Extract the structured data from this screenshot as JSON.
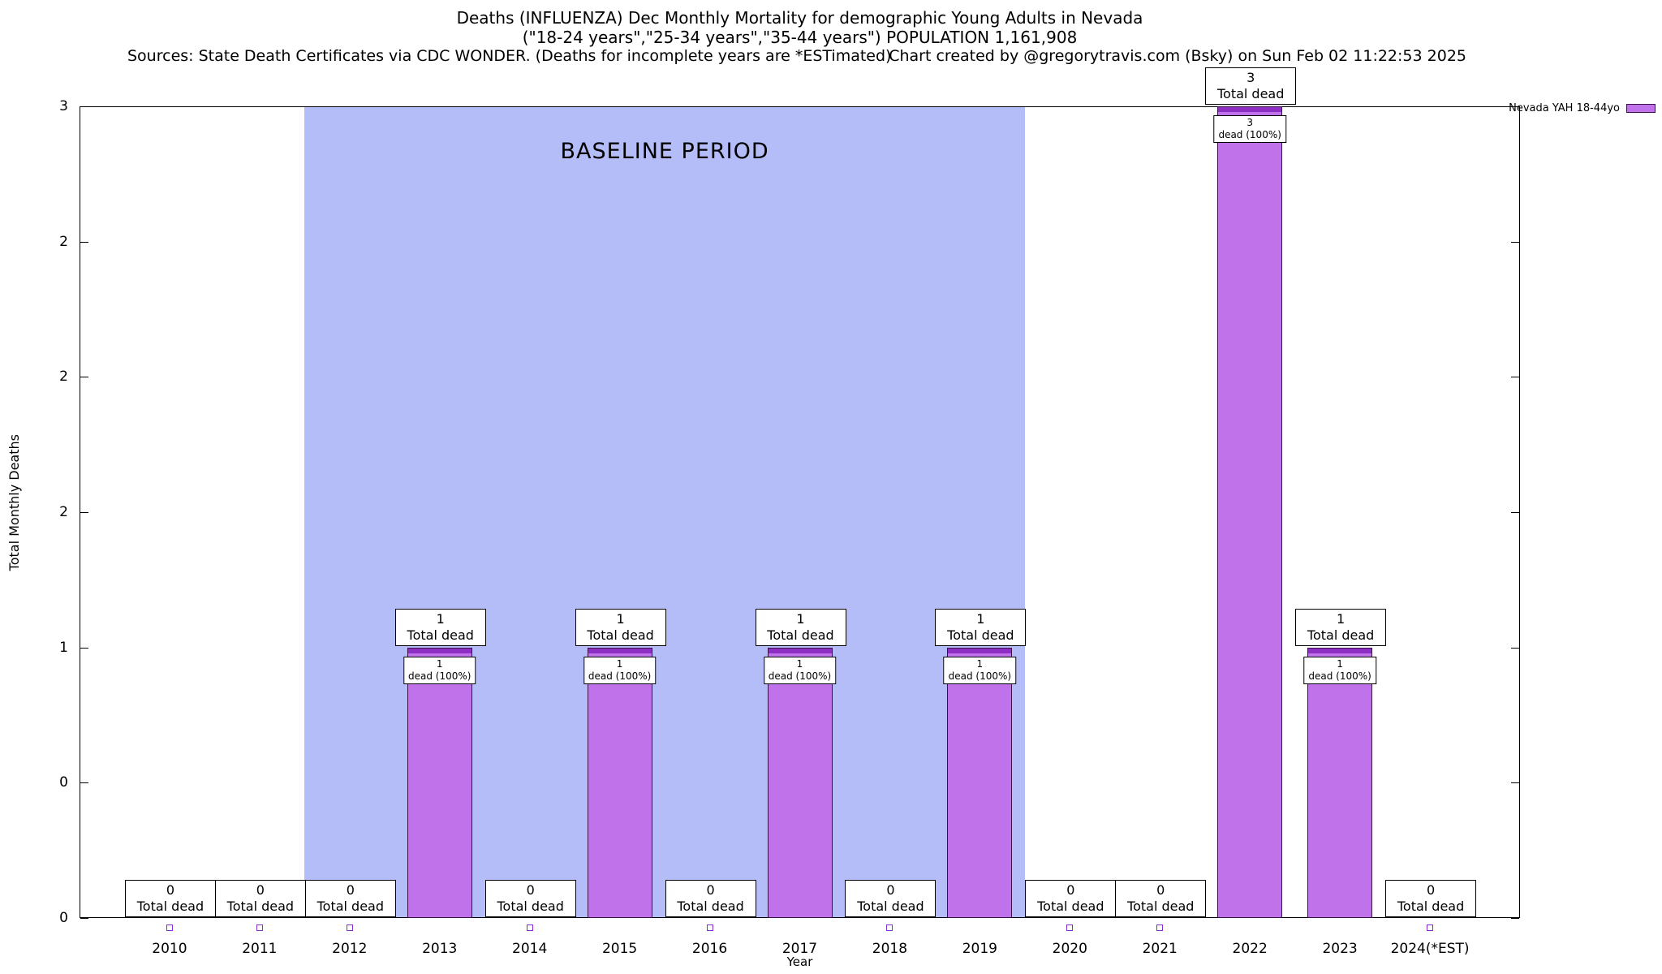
{
  "header": {
    "line1": "Deaths (INFLUENZA) Dec Monthly Mortality for demographic Young Adults in Nevada",
    "line2": "(\"18-24 years\",\"25-34 years\",\"35-44 years\") POPULATION 1,161,908",
    "sources": "Sources: State Death Certificates via CDC WONDER. (Deaths for incomplete years are *ESTimated)",
    "credit": "Chart created by @gregorytravis.com (Bsky) on Sun Feb 02 11:22:53 2025"
  },
  "legend": {
    "label": "Nevada YAH 18-44yo"
  },
  "colors": {
    "bar_fill": "#c072ea",
    "bar_cap": "#8e2fc4",
    "bar_border": "#3a1048",
    "baseline_fill": "#b5bdf9",
    "box_border": "#000000",
    "marker_border": "#8a2bd0",
    "axis": "#000000"
  },
  "chart_data": {
    "type": "bar",
    "title": "Deaths (INFLUENZA) Dec Monthly Mortality for demographic Young Adults in Nevada",
    "subtitle": "(\"18-24 years\",\"25-34 years\",\"35-44 years\") POPULATION 1,161,908",
    "xlabel": "Year",
    "ylabel": "Total Monthly Deaths",
    "ylim": [
      0,
      3
    ],
    "yticks": [
      0,
      0.5,
      1,
      1.5,
      2,
      2.5,
      3
    ],
    "ytick_labels": [
      "0",
      "0",
      "1",
      "2",
      "2",
      "2",
      "3"
    ],
    "categories": [
      "2010",
      "2011",
      "2012",
      "2013",
      "2014",
      "2015",
      "2016",
      "2017",
      "2018",
      "2019",
      "2020",
      "2021",
      "2022",
      "2023",
      "2024(*EST)"
    ],
    "values": [
      0,
      0,
      0,
      1,
      0,
      1,
      0,
      1,
      0,
      1,
      0,
      0,
      3,
      1,
      0
    ],
    "series": [
      {
        "name": "Nevada YAH 18-44yo",
        "values": [
          0,
          0,
          0,
          1,
          0,
          1,
          0,
          1,
          0,
          1,
          0,
          0,
          3,
          1,
          0
        ]
      }
    ],
    "labels": {
      "total": "Total dead",
      "dead_pct": "dead (100%)"
    },
    "baseline": {
      "label": "BASELINE PERIOD",
      "from": "2012",
      "to": "2019"
    },
    "legend_position": "top-right",
    "grid": false
  }
}
